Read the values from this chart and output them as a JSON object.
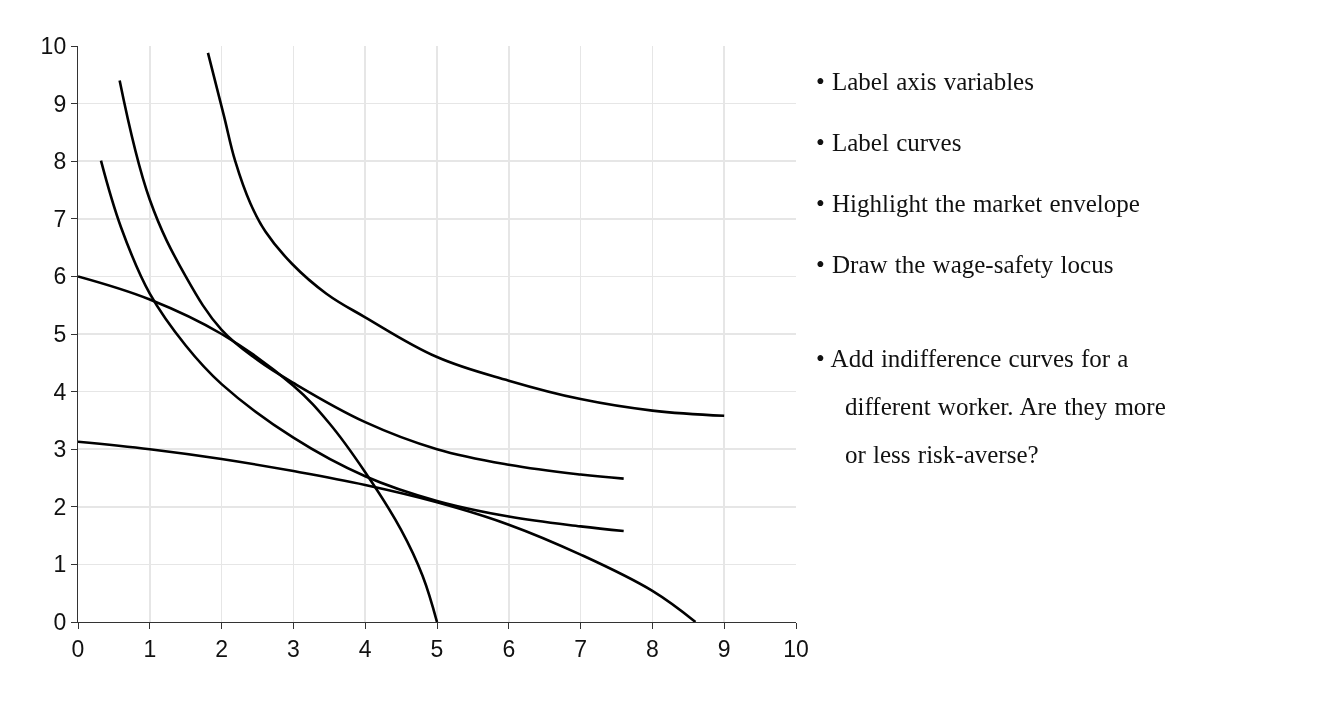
{
  "chart_data": {
    "type": "line",
    "xlim": [
      0,
      10
    ],
    "ylim": [
      0,
      10
    ],
    "xticks": [
      0,
      1,
      2,
      3,
      4,
      5,
      6,
      7,
      8,
      9,
      10
    ],
    "yticks": [
      0,
      1,
      2,
      3,
      4,
      5,
      6,
      7,
      8,
      9,
      10
    ],
    "grid": true,
    "marker": "none",
    "line_style": "solid",
    "series": [
      {
        "color": "#000000",
        "x": [
          1.81,
          2.03,
          2.19,
          2.4,
          2.61,
          2.98,
          3.46,
          4,
          5,
          6,
          7,
          8,
          9
        ],
        "values": [
          9.88,
          8.8,
          8.0,
          7.27,
          6.78,
          6.22,
          5.7,
          5.29,
          4.6,
          4.19,
          3.87,
          3.67,
          3.58
        ]
      },
      {
        "color": "#000000",
        "x": [
          0.58,
          1,
          1.5,
          2,
          2.5,
          3,
          4,
          5,
          6,
          7,
          7.6
        ],
        "values": [
          9.4,
          7.33,
          6.0,
          5.07,
          4.55,
          4.15,
          3.47,
          3.0,
          2.73,
          2.56,
          2.49
        ]
      },
      {
        "color": "#000000",
        "x": [
          0.32,
          0.6,
          1,
          1.5,
          2,
          3,
          4,
          5,
          6,
          7,
          7.6
        ],
        "values": [
          8.01,
          6.85,
          5.7,
          4.8,
          4.13,
          3.2,
          2.53,
          2.1,
          1.83,
          1.66,
          1.58
        ]
      },
      {
        "color": "#000000",
        "x": [
          0,
          1,
          2,
          3,
          3.5,
          4,
          4.5,
          4.8,
          5
        ],
        "values": [
          6,
          5.6,
          5.0,
          4.1,
          3.45,
          2.6,
          1.6,
          0.8,
          0
        ]
      },
      {
        "color": "#000000",
        "x": [
          0,
          1,
          2,
          3,
          4,
          5,
          6,
          7,
          8,
          8.6
        ],
        "values": [
          3.13,
          3.0,
          2.83,
          2.62,
          2.38,
          2.08,
          1.69,
          1.17,
          0.54,
          0
        ]
      }
    ],
    "annotations": [
      "• Label axis variables",
      "• Label curves",
      "• Highlight the market envelope",
      "• Draw the wage-safety locus",
      "• Add indifference curves for a different worker. Are they more or less risk-averse?"
    ]
  }
}
